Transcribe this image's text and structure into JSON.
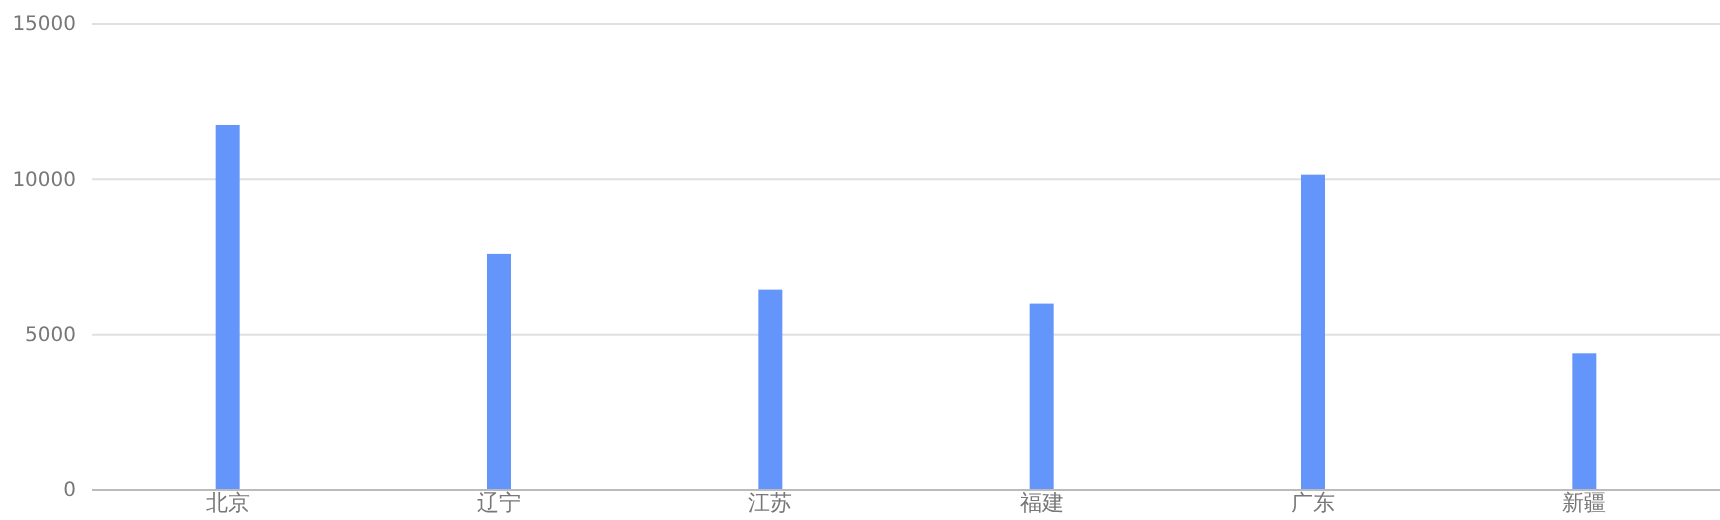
{
  "chart_data": {
    "type": "bar",
    "categories": [
      "北京",
      "辽宁",
      "江苏",
      "福建",
      "广东",
      "新疆"
    ],
    "values": [
      11750,
      7600,
      6450,
      6000,
      10150,
      4400
    ],
    "color": "#6495fa",
    "ylim": [
      0,
      15000
    ],
    "yticks": [
      0,
      5000,
      10000,
      15000
    ],
    "grid": "y"
  }
}
